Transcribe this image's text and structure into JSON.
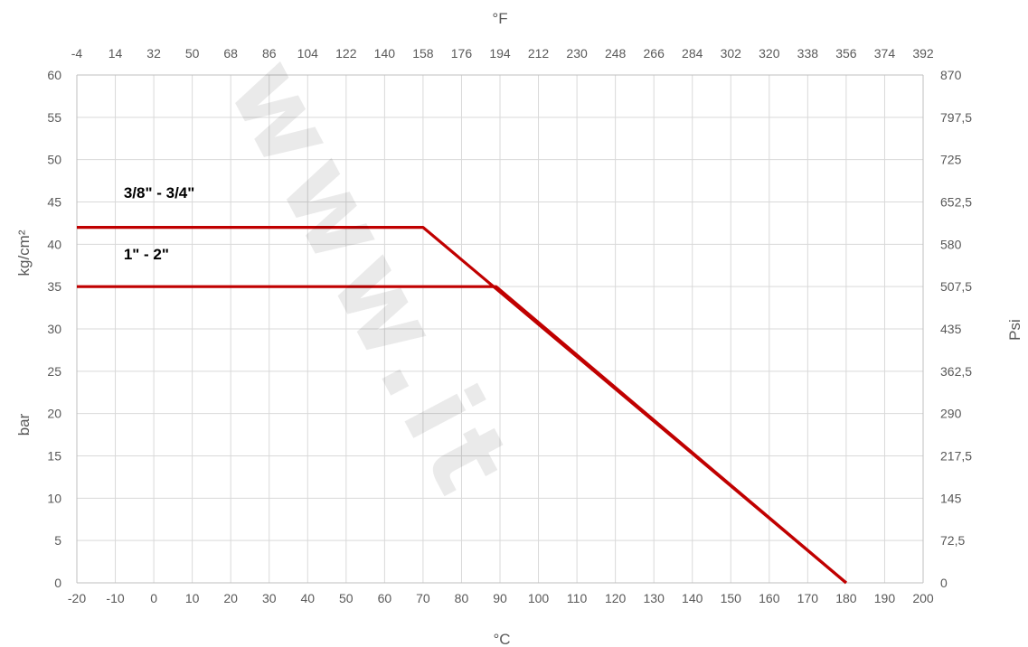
{
  "chart_data": {
    "type": "line",
    "x_bottom_label": "°C",
    "x_top_label": "°F",
    "y_left_label_upper": "kg/cm²",
    "y_left_label_lower": "bar",
    "y_right_label": "Psi",
    "xlim": [
      -20,
      200
    ],
    "ylim": [
      0,
      60
    ],
    "x_ticks": [
      -20,
      -10,
      0,
      10,
      20,
      30,
      40,
      50,
      60,
      70,
      80,
      90,
      100,
      110,
      120,
      130,
      140,
      150,
      160,
      170,
      180,
      190,
      200
    ],
    "x_top_ticks": [
      "-4",
      "14",
      "32",
      "50",
      "68",
      "86",
      "104",
      "122",
      "140",
      "158",
      "176",
      "194",
      "212",
      "230",
      "248",
      "266",
      "284",
      "302",
      "320",
      "338",
      "356",
      "374",
      "392"
    ],
    "y_ticks": [
      0,
      5,
      10,
      15,
      20,
      25,
      30,
      35,
      40,
      45,
      50,
      55,
      60
    ],
    "y_right_ticks": [
      "0",
      "72,5",
      "145",
      "217,5",
      "290",
      "362,5",
      "435",
      "507,5",
      "580",
      "652,5",
      "725",
      "797,5",
      "870"
    ],
    "grid": true,
    "line_color": "#c00000",
    "series": [
      {
        "name": "3/8\" - 3/4\"",
        "x": [
          -20,
          70,
          180
        ],
        "y": [
          42,
          42,
          0
        ]
      },
      {
        "name": "1\" - 2\"",
        "x": [
          -20,
          89,
          180
        ],
        "y": [
          35,
          35,
          0
        ]
      }
    ]
  },
  "watermark": "www.it"
}
